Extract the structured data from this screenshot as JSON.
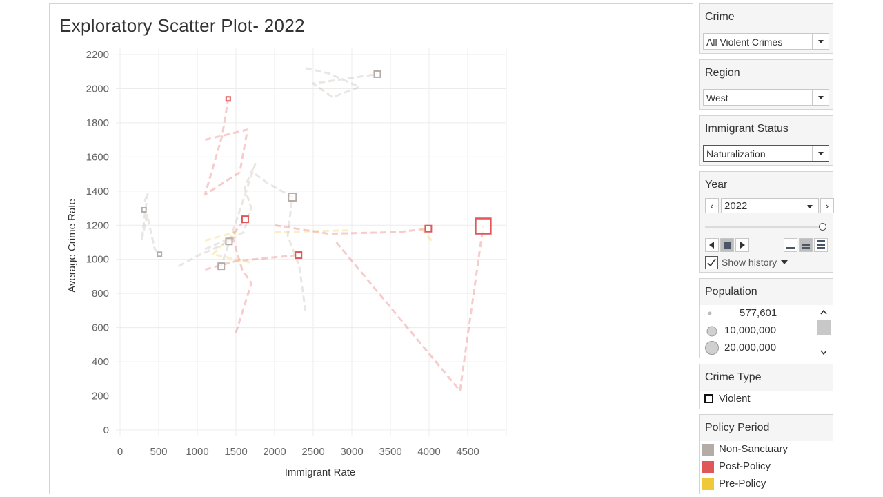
{
  "chart_data": {
    "type": "scatter",
    "title": "Exploratory Scatter Plot- 2022",
    "xlabel": "Immigrant Rate",
    "ylabel": "Average Crime Rate",
    "xlim": [
      0,
      5000
    ],
    "ylim": [
      0,
      2200
    ],
    "x_ticks": [
      "0",
      "500",
      "1000",
      "1500",
      "2000",
      "2500",
      "3000",
      "3500",
      "4000",
      "4500"
    ],
    "y_ticks": [
      "0",
      "200",
      "400",
      "600",
      "800",
      "1000",
      "1200",
      "1400",
      "1600",
      "1800",
      "2000",
      "2200"
    ],
    "grid": true,
    "marker": "square-outline",
    "series": [
      {
        "name": "Non-Sanctuary",
        "color": "#b5aca7",
        "points": [
          {
            "x": 310,
            "y": 1290,
            "size": 1
          },
          {
            "x": 510,
            "y": 1030,
            "size": 1
          },
          {
            "x": 1310,
            "y": 960,
            "size": 2
          },
          {
            "x": 1410,
            "y": 1105,
            "size": 2
          },
          {
            "x": 2230,
            "y": 1365,
            "size": 3
          },
          {
            "x": 3330,
            "y": 2085,
            "size": 2
          }
        ],
        "history": [
          [
            [
              320,
              1340
            ],
            [
              360,
              1390
            ],
            [
              320,
              1260
            ],
            [
              280,
              1110
            ],
            [
              350,
              1260
            ],
            [
              450,
              1060
            ],
            [
              510,
              1030
            ]
          ],
          [
            [
              760,
              960
            ],
            [
              1000,
              1020
            ],
            [
              1300,
              1080
            ],
            [
              1600,
              1160
            ],
            [
              1700,
              1300
            ],
            [
              1610,
              1420
            ],
            [
              1750,
              1560
            ],
            [
              1310,
              960
            ]
          ],
          [
            [
              1100,
              1060
            ],
            [
              1400,
              1120
            ],
            [
              1410,
              1105
            ]
          ],
          [
            [
              1750,
              1500
            ],
            [
              1900,
              1450
            ],
            [
              2230,
              1365
            ],
            [
              2170,
              1140
            ],
            [
              2320,
              960
            ],
            [
              2400,
              700
            ]
          ],
          [
            [
              2400,
              2120
            ],
            [
              2700,
              2090
            ],
            [
              3100,
              2010
            ],
            [
              2750,
              1950
            ],
            [
              2500,
              2030
            ],
            [
              3330,
              2085
            ]
          ]
        ]
      },
      {
        "name": "Post-Policy",
        "color": "#e05759",
        "points": [
          {
            "x": 1400,
            "y": 1940,
            "size": 1
          },
          {
            "x": 1620,
            "y": 1235,
            "size": 2
          },
          {
            "x": 2310,
            "y": 1025,
            "size": 2
          },
          {
            "x": 3990,
            "y": 1180,
            "size": 2
          },
          {
            "x": 4700,
            "y": 1195,
            "size": 4
          }
        ],
        "history": [
          [
            [
              1100,
              1700
            ],
            [
              1650,
              1760
            ],
            [
              1550,
              1510
            ],
            [
              1100,
              1380
            ],
            [
              1320,
              1720
            ],
            [
              1400,
              1940
            ]
          ],
          [
            [
              1500,
              570
            ],
            [
              1700,
              860
            ],
            [
              1580,
              940
            ],
            [
              1450,
              1140
            ],
            [
              1620,
              1235
            ]
          ],
          [
            [
              1100,
              940
            ],
            [
              1500,
              990
            ],
            [
              2310,
              1025
            ]
          ],
          [
            [
              2000,
              1200
            ],
            [
              2700,
              1150
            ],
            [
              3600,
              1160
            ],
            [
              3990,
              1180
            ]
          ],
          [
            [
              2800,
              1100
            ],
            [
              4400,
              230
            ],
            [
              4700,
              1195
            ]
          ]
        ]
      },
      {
        "name": "Pre-Policy",
        "color": "#efc93a",
        "points": [],
        "history": [
          [
            [
              1100,
              1110
            ],
            [
              1500,
              1160
            ],
            [
              1200,
              1030
            ],
            [
              1700,
              980
            ]
          ],
          [
            [
              2000,
              1160
            ],
            [
              2950,
              1170
            ]
          ],
          [
            [
              3900,
              1180
            ],
            [
              4050,
              1100
            ]
          ]
        ]
      }
    ]
  },
  "filters": {
    "crime": {
      "title": "Crime",
      "value": "All Violent Crimes"
    },
    "region": {
      "title": "Region",
      "value": "West"
    },
    "immigrant_status": {
      "title": "Immigrant Status",
      "value": "Naturalization"
    }
  },
  "year": {
    "title": "Year",
    "value": "2022",
    "prev_label": "‹",
    "next_label": "›",
    "show_history": "Show history"
  },
  "population": {
    "title": "Population",
    "items": [
      "577,601",
      "10,000,000",
      "20,000,000"
    ]
  },
  "crime_type": {
    "title": "Crime Type",
    "items": [
      "Violent"
    ]
  },
  "policy_period": {
    "title": "Policy Period",
    "items": [
      {
        "label": "Non-Sanctuary",
        "color": "#b5aca7"
      },
      {
        "label": "Post-Policy",
        "color": "#e05759"
      },
      {
        "label": "Pre-Policy",
        "color": "#efc93a"
      }
    ]
  }
}
